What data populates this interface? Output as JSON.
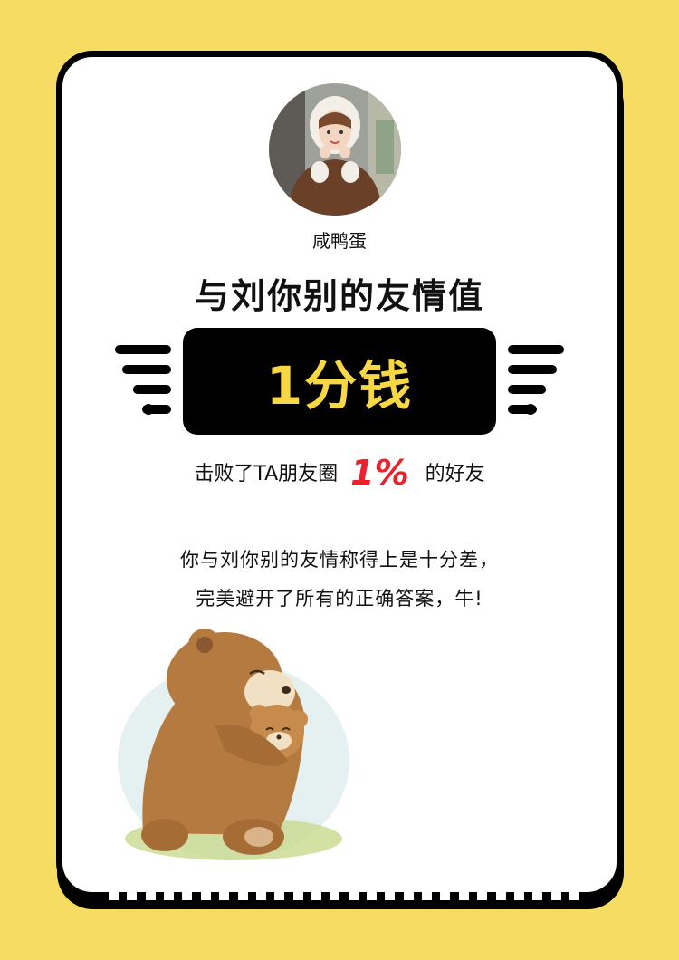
{
  "profile": {
    "avatar_icon": "user-photo-avatar",
    "username": "咸鸭蛋"
  },
  "result": {
    "headline": "与刘你别的友情值",
    "score": "1分钱",
    "beat_prefix": "击败了TA朋友圈",
    "beat_percent": "1%",
    "beat_suffix": "的好友"
  },
  "description": {
    "line1": "你与刘你别的友情称得上是十分差，",
    "line2": "完美避开了所有的正确答案，牛!"
  },
  "illustration": {
    "icon": "bear-hugging-cub-illustration"
  },
  "colors": {
    "background": "#F7DC63",
    "score_text": "#F7D744",
    "percent": "#E8232E"
  }
}
